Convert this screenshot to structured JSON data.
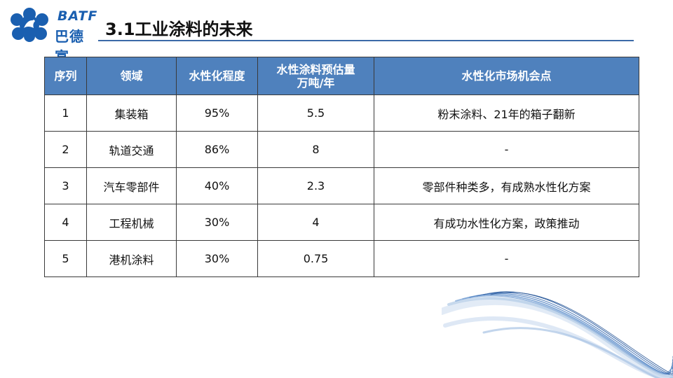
{
  "logo": {
    "en": "BATF",
    "cn": "巴德富"
  },
  "title": "3.1工业涂料的未来",
  "table": {
    "headers": [
      "序列",
      "领域",
      "水性化程度",
      "水性涂料预估量\n万吨/年",
      "水性化市场机会点"
    ],
    "header_line1": "水性涂料预估量",
    "header_line2": "万吨/年",
    "rows": [
      [
        "1",
        "集装箱",
        "95%",
        "5.5",
        "粉末涂料、21年的箱子翻新"
      ],
      [
        "2",
        "轨道交通",
        "86%",
        "8",
        "-"
      ],
      [
        "3",
        "汽车零部件",
        "40%",
        "2.3",
        "零部件种类多，有成熟水性化方案"
      ],
      [
        "4",
        "工程机械",
        "30%",
        "4",
        "有成功水性化方案，政策推动"
      ],
      [
        "5",
        "港机涂料",
        "30%",
        "0.75",
        "-"
      ]
    ]
  },
  "colors": {
    "header_bg": "#4f81bd",
    "brand": "#1a5fb0",
    "rule": "#3b6aa8"
  }
}
